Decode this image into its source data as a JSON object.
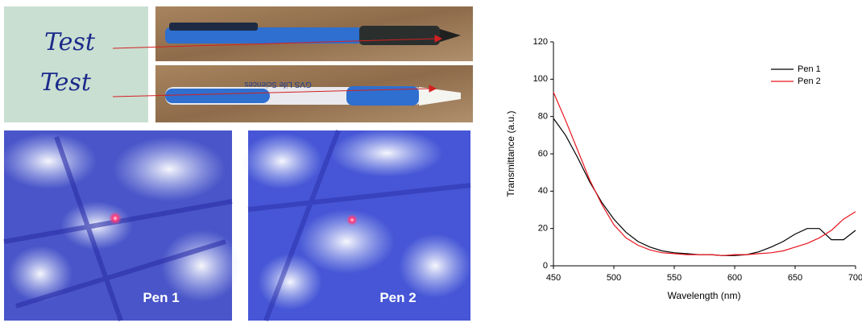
{
  "photos": {
    "handwriting": [
      "Test",
      "Test"
    ],
    "pen_text": "GVS Life Sciences",
    "micrographs": [
      "Pen 1",
      "Pen 2"
    ]
  },
  "chart_data": {
    "type": "line",
    "x_label": "Wavelength (nm)",
    "y_label": "Transmittance (a.u.)",
    "x": [
      450,
      460,
      470,
      480,
      490,
      500,
      510,
      520,
      530,
      540,
      550,
      560,
      570,
      580,
      590,
      600,
      610,
      620,
      630,
      640,
      650,
      660,
      670,
      680,
      690,
      700
    ],
    "series": [
      {
        "name": "Pen 1",
        "color": "#000000",
        "values": [
          79,
          70,
          58,
          45,
          34,
          25,
          18,
          13,
          10,
          8,
          7,
          6.5,
          6,
          6,
          5.5,
          5.5,
          6,
          7.5,
          10,
          13,
          17,
          20,
          20,
          14,
          14,
          19
        ]
      },
      {
        "name": "Pen 2",
        "color": "#e8141e",
        "values": [
          93,
          78,
          62,
          46,
          33,
          22,
          15,
          11,
          8.5,
          7,
          6.5,
          6,
          6,
          6,
          5.5,
          6,
          6,
          6.5,
          7,
          8,
          10,
          12,
          15,
          19,
          25,
          29
        ]
      }
    ],
    "xlim": [
      450,
      700
    ],
    "ylim": [
      0,
      120
    ],
    "xticks": [
      450,
      500,
      550,
      600,
      650,
      700
    ],
    "yticks": [
      0,
      20,
      40,
      60,
      80,
      100,
      120
    ],
    "legend": "upper right",
    "grid": false
  }
}
